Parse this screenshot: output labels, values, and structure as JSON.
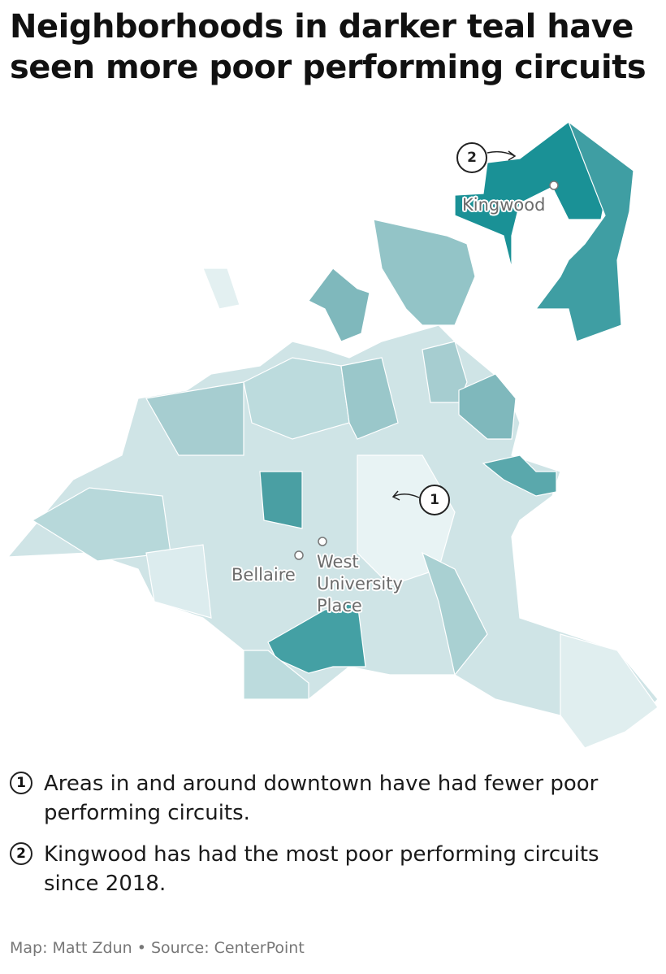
{
  "header": {
    "title": "Neighborhoods in darker teal have seen more poor performing circuits"
  },
  "map": {
    "places": [
      {
        "label": "Kingwood"
      },
      {
        "label": "Bellaire"
      },
      {
        "label": "West University Place"
      }
    ],
    "annotations": [
      {
        "marker": "1"
      },
      {
        "marker": "2"
      }
    ]
  },
  "notes": [
    {
      "marker": "1",
      "text": "Areas in and around downtown have had fewer poor performing circuits."
    },
    {
      "marker": "2",
      "text": "Kingwood has had the most poor performing circuits since 2018."
    }
  ],
  "footer": {
    "credit": "Map: Matt Zdun • Source: CenterPoint"
  }
}
